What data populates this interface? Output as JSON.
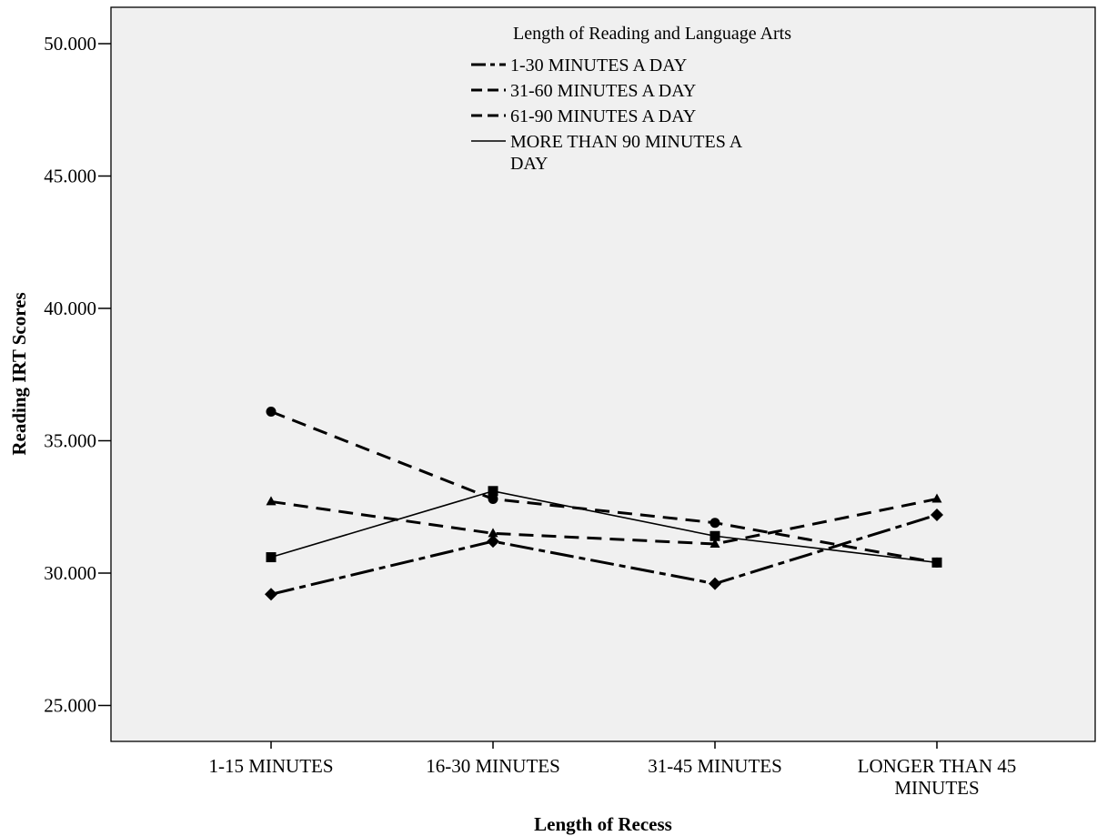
{
  "chart_data": {
    "type": "line",
    "title": "",
    "xlabel": "Length of Recess",
    "ylabel": "Reading IRT Scores",
    "ylim": [
      25,
      50
    ],
    "yticks": [
      "25.000",
      "30.000",
      "35.000",
      "40.000",
      "45.000",
      "50.000"
    ],
    "categories": [
      [
        "1-15 MINUTES"
      ],
      [
        "16-30 MINUTES"
      ],
      [
        "31-45 MINUTES"
      ],
      [
        "LONGER THAN 45",
        "MINUTES"
      ]
    ],
    "grid": false,
    "legend": {
      "title": "Length of Reading and Language Arts",
      "placement": "top-center"
    },
    "series": [
      {
        "name": [
          "1-30 MINUTES A DAY"
        ],
        "values": [
          29.2,
          31.2,
          29.6,
          32.2
        ],
        "marker": "diamond",
        "dash": "dashdot"
      },
      {
        "name": [
          "31-60 MINUTES A DAY"
        ],
        "values": [
          36.1,
          32.8,
          31.9,
          30.4
        ],
        "marker": "circle",
        "dash": "dashed"
      },
      {
        "name": [
          "61-90 MINUTES A DAY"
        ],
        "values": [
          32.7,
          31.5,
          31.1,
          32.8
        ],
        "marker": "triangle",
        "dash": "dashed"
      },
      {
        "name": [
          "MORE THAN 90 MINUTES A",
          "DAY"
        ],
        "values": [
          30.6,
          33.1,
          31.4,
          30.4
        ],
        "marker": "square",
        "dash": "solid"
      }
    ]
  }
}
